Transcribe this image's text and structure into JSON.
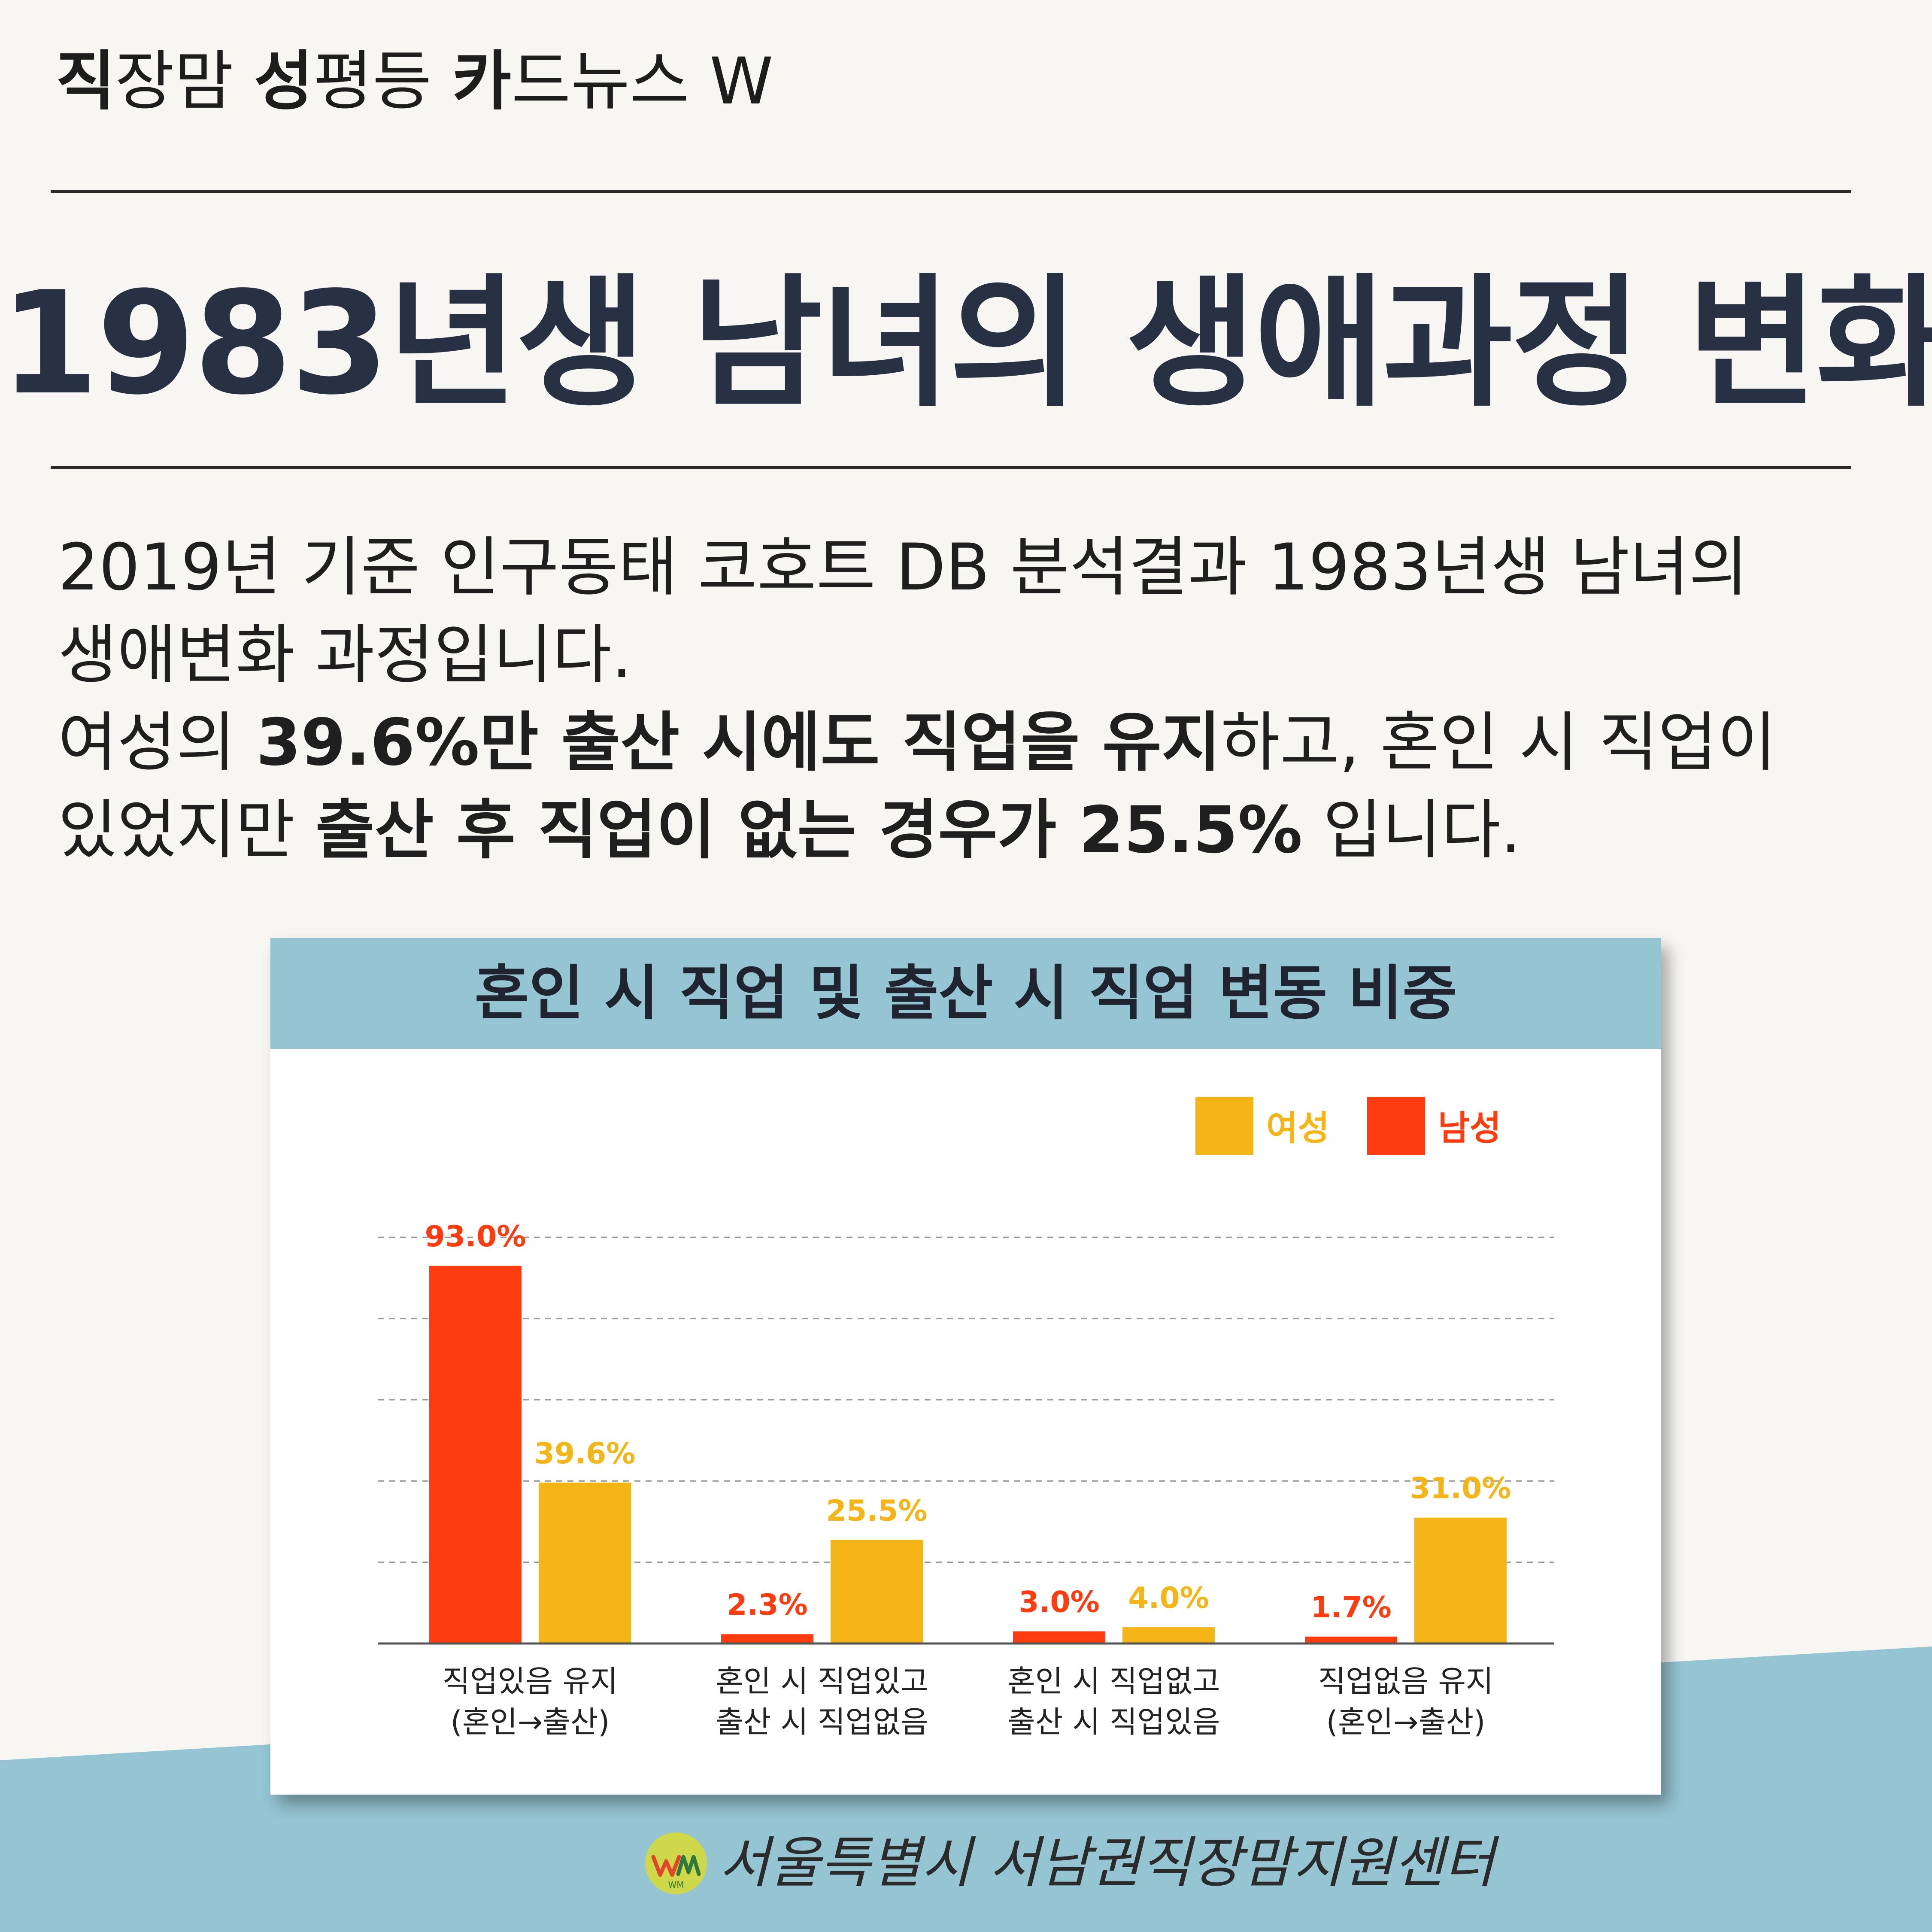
{
  "header": {
    "brand": [
      {
        "text": "직",
        "bold": true
      },
      {
        "text": "장맘 ",
        "bold": false
      },
      {
        "text": "성",
        "bold": true
      },
      {
        "text": "평등 ",
        "bold": false
      },
      {
        "text": "카",
        "bold": true
      },
      {
        "text": "드뉴스 W",
        "bold": false
      }
    ]
  },
  "title": "1983년생 남녀의 생애과정 변화",
  "intro": {
    "lines": [
      [
        {
          "text": "2019년 기준 인구동태 코호트 DB 분석결과 1983년생 남녀의",
          "bold": false
        }
      ],
      [
        {
          "text": "생애변화 과정입니다.",
          "bold": false
        }
      ],
      [
        {
          "text": "여성의 ",
          "bold": false
        },
        {
          "text": "39.6%만 출산 시에도 직업을 유지",
          "bold": true
        },
        {
          "text": "하고, 혼인 시 직업이",
          "bold": false
        }
      ],
      [
        {
          "text": "있었지만 ",
          "bold": false
        },
        {
          "text": "출산 후 직업이 없는 경우가 25.5%",
          "bold": true
        },
        {
          "text": " 입니다.",
          "bold": false
        }
      ]
    ]
  },
  "chart_data": {
    "type": "bar",
    "title": "혼인 시 직업 및 출산 시 직업 변동 비중",
    "categories": [
      [
        "직업있음 유지",
        "(혼인→출산)"
      ],
      [
        "혼인 시 직업있고",
        "출산 시 직업없음"
      ],
      [
        "혼인 시 직업없고",
        "출산 시 직업있음"
      ],
      [
        "직업없음 유지",
        "(혼인→출산)"
      ]
    ],
    "series": [
      {
        "name": "남성",
        "color": "#ff3c0f",
        "values": [
          93.0,
          2.3,
          3.0,
          1.7
        ],
        "labels": [
          "93.0%",
          "2.3%",
          "3.0%",
          "1.7%"
        ]
      },
      {
        "name": "여성",
        "color": "#f6b516",
        "values": [
          39.6,
          25.5,
          4.0,
          31.0
        ],
        "labels": [
          "39.6%",
          "25.5%",
          "4.0%",
          "31.0%"
        ]
      }
    ],
    "legend": {
      "placement": "top-right",
      "order": [
        "여성",
        "남성"
      ]
    },
    "ylim": [
      0,
      100
    ],
    "grid": true,
    "axis_line_color": "#555555",
    "grid_color": "#9a9a9a"
  },
  "footer": {
    "org_name": "서울특별시 서남권직장맘지원센터",
    "logo_text": "WM"
  }
}
